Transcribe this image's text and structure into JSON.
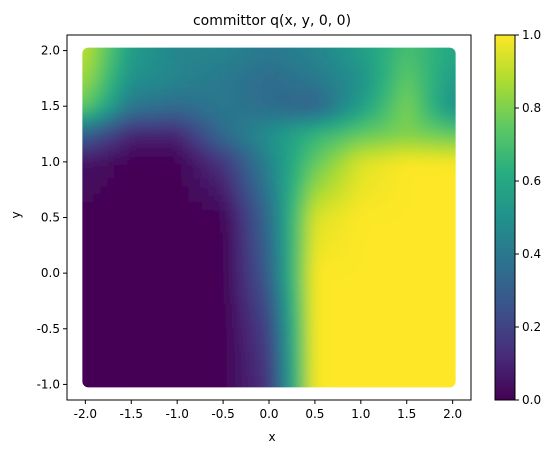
{
  "chart_data": {
    "type": "heatmap",
    "title": "committor q(x, y, 0, 0)",
    "xlabel": "x",
    "ylabel": "y",
    "xlim": [
      -2.2,
      2.2
    ],
    "ylim": [
      -1.14,
      2.14
    ],
    "data_extent": {
      "x": [
        -2.0,
        2.0
      ],
      "y": [
        -1.0,
        2.0
      ]
    },
    "xticks": [
      -2.0,
      -1.5,
      -1.0,
      -0.5,
      0.0,
      0.5,
      1.0,
      1.5,
      2.0
    ],
    "yticks": [
      -1.0,
      -0.5,
      0.0,
      0.5,
      1.0,
      1.5,
      2.0
    ],
    "colorbar": {
      "range": [
        0.0,
        1.0
      ],
      "ticks": [
        0.0,
        0.2,
        0.4,
        0.6,
        0.8,
        1.0
      ],
      "colormap": "viridis"
    },
    "grid": false,
    "legend": "none",
    "grid_x": [
      -2.0,
      -1.5,
      -1.0,
      -0.5,
      0.0,
      0.5,
      1.0,
      1.5,
      2.0
    ],
    "grid_y": [
      -1.0,
      -0.5,
      0.0,
      0.5,
      1.0,
      1.25,
      1.5,
      1.75,
      2.0
    ],
    "values": [
      [
        0.0,
        0.0,
        0.0,
        0.0,
        0.15,
        1.0,
        1.0,
        1.0,
        1.0
      ],
      [
        0.0,
        0.0,
        0.0,
        0.0,
        0.2,
        1.0,
        1.0,
        1.0,
        1.0
      ],
      [
        0.0,
        0.0,
        0.0,
        0.0,
        0.3,
        1.0,
        1.0,
        1.0,
        1.0
      ],
      [
        0.0,
        0.0,
        0.0,
        0.0,
        0.35,
        0.95,
        1.0,
        1.0,
        1.0
      ],
      [
        0.05,
        0.0,
        0.0,
        0.15,
        0.45,
        0.75,
        0.95,
        1.0,
        1.0
      ],
      [
        0.3,
        0.1,
        0.1,
        0.35,
        0.5,
        0.65,
        0.75,
        0.8,
        0.75
      ],
      [
        0.75,
        0.4,
        0.35,
        0.4,
        0.35,
        0.3,
        0.55,
        0.8,
        0.5
      ],
      [
        0.85,
        0.5,
        0.45,
        0.4,
        0.35,
        0.4,
        0.5,
        0.75,
        0.55
      ],
      [
        0.9,
        0.55,
        0.45,
        0.45,
        0.4,
        0.45,
        0.55,
        0.7,
        0.6
      ]
    ]
  }
}
